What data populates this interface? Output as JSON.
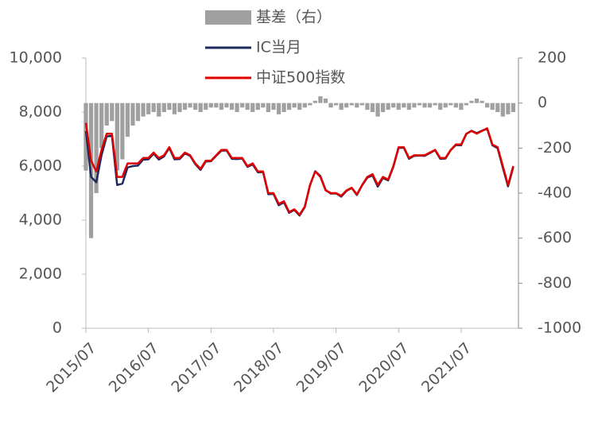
{
  "chart_data": {
    "type": "line",
    "categories": [
      "2015/07",
      "2015/08",
      "2015/09",
      "2015/10",
      "2015/11",
      "2015/12",
      "2016/01",
      "2016/02",
      "2016/03",
      "2016/04",
      "2016/05",
      "2016/06",
      "2016/07",
      "2016/08",
      "2016/09",
      "2016/10",
      "2016/11",
      "2016/12",
      "2017/01",
      "2017/02",
      "2017/03",
      "2017/04",
      "2017/05",
      "2017/06",
      "2017/07",
      "2017/08",
      "2017/09",
      "2017/10",
      "2017/11",
      "2017/12",
      "2018/01",
      "2018/02",
      "2018/03",
      "2018/04",
      "2018/05",
      "2018/06",
      "2018/07",
      "2018/08",
      "2018/09",
      "2018/10",
      "2018/11",
      "2018/12",
      "2019/01",
      "2019/02",
      "2019/03",
      "2019/04",
      "2019/05",
      "2019/06",
      "2019/07",
      "2019/08",
      "2019/09",
      "2019/10",
      "2019/11",
      "2019/12",
      "2020/01",
      "2020/02",
      "2020/03",
      "2020/04",
      "2020/05",
      "2020/06",
      "2020/07",
      "2020/08",
      "2020/09",
      "2020/10",
      "2020/11",
      "2020/12",
      "2021/01",
      "2021/02",
      "2021/03",
      "2021/04",
      "2021/05",
      "2021/06",
      "2021/07",
      "2021/08",
      "2021/09",
      "2021/10",
      "2021/11",
      "2021/12",
      "2022/01",
      "2022/02",
      "2022/03",
      "2022/04",
      "2022/05"
    ],
    "xticks": [
      "2015/07",
      "2016/07",
      "2017/07",
      "2018/07",
      "2019/07",
      "2020/07",
      "2021/07"
    ],
    "series": [
      {
        "name": "基差（右）",
        "color": "#a0a0a0",
        "axis": "y2",
        "kind": "bar",
        "values": [
          -300,
          -600,
          -400,
          -200,
          -100,
          -80,
          -300,
          -250,
          -150,
          -100,
          -80,
          -60,
          -50,
          -40,
          -60,
          -40,
          -30,
          -50,
          -40,
          -30,
          -20,
          -30,
          -40,
          -30,
          -20,
          -20,
          -30,
          -20,
          -30,
          -40,
          -20,
          -30,
          -40,
          -30,
          -20,
          -40,
          -30,
          -50,
          -40,
          -30,
          -20,
          -30,
          -20,
          -10,
          10,
          30,
          20,
          -20,
          -10,
          -30,
          -20,
          -10,
          -20,
          -10,
          -30,
          -40,
          -60,
          -40,
          -30,
          -20,
          -30,
          -20,
          -30,
          -20,
          -10,
          -20,
          -20,
          -10,
          -30,
          -20,
          -10,
          -20,
          -30,
          -10,
          10,
          20,
          10,
          -20,
          -30,
          -40,
          -60,
          -50,
          -40
        ]
      },
      {
        "name": "IC当月",
        "color": "#1f2a5c",
        "kind": "line",
        "values": [
          7300,
          5600,
          5400,
          6400,
          7100,
          7120,
          5300,
          5350,
          5950,
          6000,
          6020,
          6240,
          6250,
          6460,
          6240,
          6360,
          6670,
          6250,
          6260,
          6470,
          6380,
          6070,
          5860,
          6170,
          6180,
          6380,
          6570,
          6580,
          6270,
          6260,
          6280,
          5970,
          6060,
          5770,
          5780,
          4960,
          4970,
          4550,
          4660,
          4270,
          4380,
          4170,
          4480,
          5290,
          5810,
          5630,
          5120,
          4980,
          4990,
          4870,
          5080,
          5190,
          4930,
          5290,
          5570,
          5660,
          5240,
          5560,
          5470,
          5980,
          6670,
          6680,
          6270,
          6380,
          6390,
          6380,
          6480,
          6590,
          6270,
          6280,
          6590,
          6780,
          6770,
          7190,
          7310,
          7220,
          7310,
          7380,
          6770,
          6660,
          5940,
          5250,
          5960
        ]
      },
      {
        "name": "中证500指数",
        "color": "#e00000",
        "kind": "line",
        "values": [
          7600,
          6200,
          5800,
          6600,
          7200,
          7200,
          5600,
          5600,
          6100,
          6100,
          6100,
          6300,
          6300,
          6500,
          6300,
          6400,
          6700,
          6300,
          6300,
          6500,
          6400,
          6100,
          5900,
          6200,
          6200,
          6400,
          6600,
          6600,
          6300,
          6300,
          6300,
          6000,
          6100,
          5800,
          5800,
          5000,
          5000,
          4600,
          4700,
          4300,
          4400,
          4200,
          4500,
          5300,
          5800,
          5600,
          5100,
          5000,
          5000,
          4900,
          5100,
          5200,
          4950,
          5300,
          5600,
          5700,
          5300,
          5600,
          5500,
          6000,
          6700,
          6700,
          6300,
          6400,
          6400,
          6400,
          6500,
          6600,
          6300,
          6300,
          6600,
          6800,
          6800,
          7200,
          7300,
          7200,
          7300,
          7400,
          6800,
          6700,
          6000,
          5300,
          6000
        ]
      }
    ],
    "ylim": [
      0,
      10000
    ],
    "yticks": [
      0,
      {
        "value": 2000,
        "label": "2,000"
      },
      {
        "value": 4000,
        "label": "4,000"
      },
      {
        "value": 6000,
        "label": "6,000"
      },
      {
        "value": 8000,
        "label": "8,000"
      },
      {
        "value": 10000,
        "label": "10,000"
      }
    ],
    "y2lim": [
      -1000,
      200
    ],
    "y2ticks": [
      -1000,
      -800,
      -600,
      -400,
      -200,
      0,
      200
    ]
  }
}
